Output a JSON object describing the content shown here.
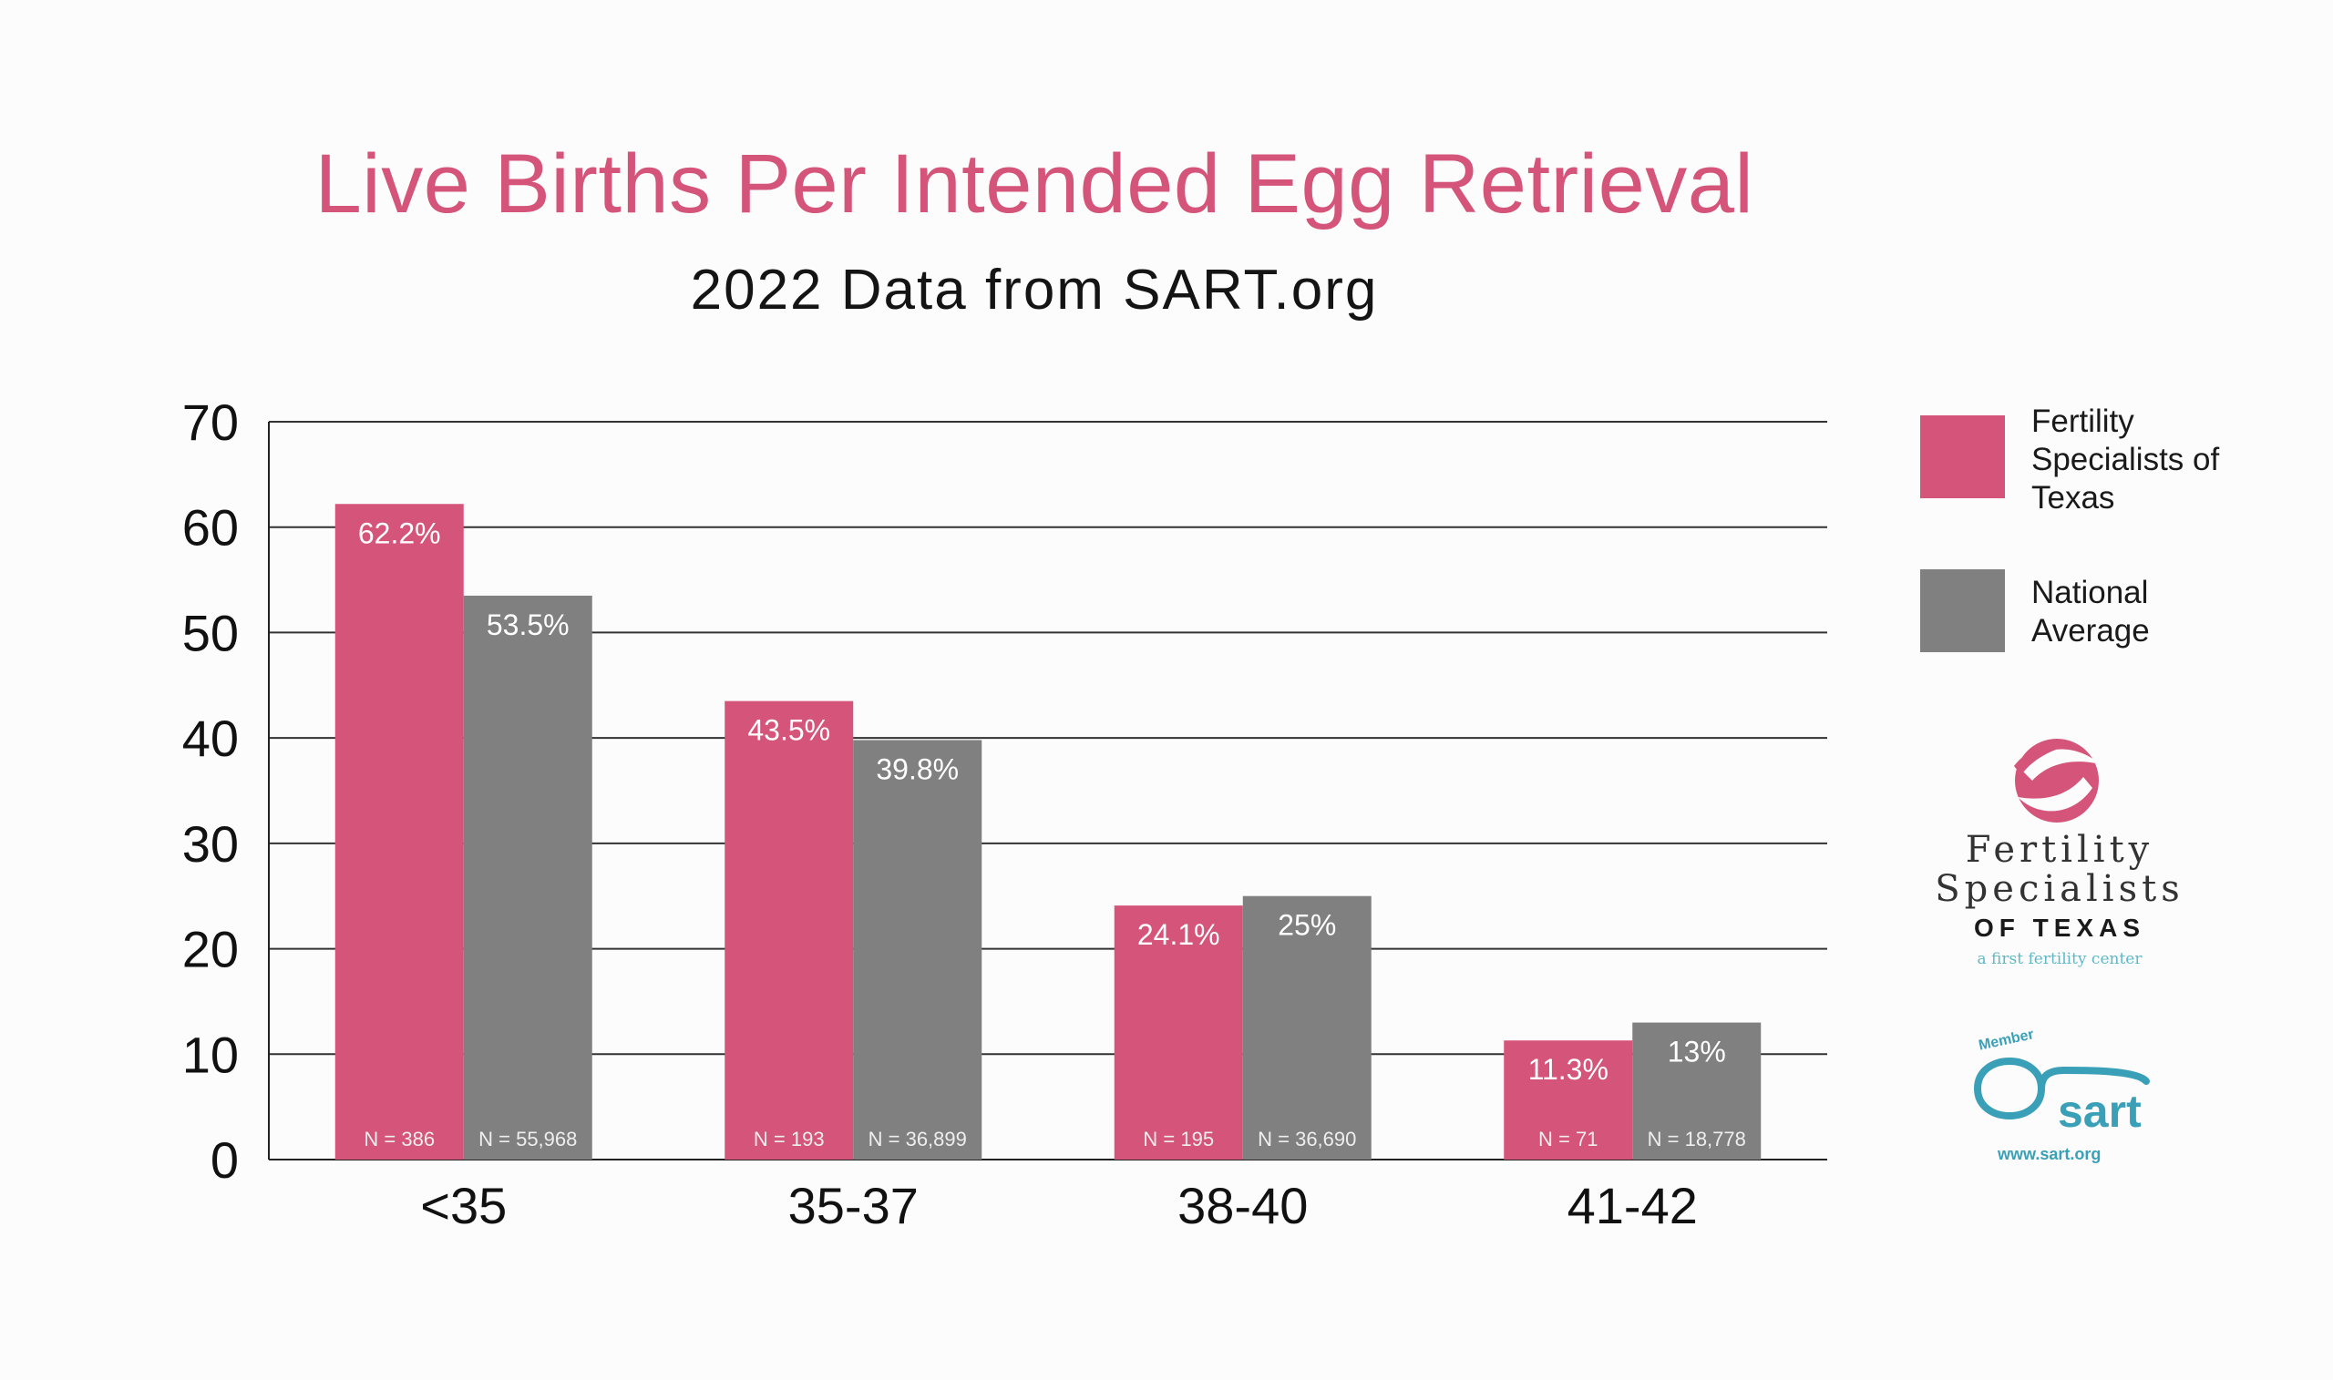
{
  "chart_data": {
    "type": "bar",
    "title": "Live Births Per Intended Egg Retrieval",
    "subtitle": "2022 Data from SART.org",
    "categories": [
      "<35",
      "35-37",
      "38-40",
      "41-42"
    ],
    "ylim": [
      0,
      70
    ],
    "yticks": [
      0,
      10,
      20,
      30,
      40,
      50,
      60,
      70
    ],
    "grid": true,
    "series": [
      {
        "name": "Fertility Specialists of Texas",
        "color": "#d4547a",
        "values": [
          62.2,
          43.5,
          24.1,
          11.3
        ],
        "labels": [
          "62.2%",
          "43.5%",
          "24.1%",
          "11.3%"
        ],
        "n_labels": [
          "N = 386",
          "N = 193",
          "N = 195",
          "N = 71"
        ]
      },
      {
        "name": "National Average",
        "color": "#808080",
        "values": [
          53.5,
          39.8,
          25,
          13
        ],
        "labels": [
          "53.5%",
          "39.8%",
          "25%",
          "13%"
        ],
        "n_labels": [
          "N = 55,968",
          "N = 36,899",
          "N = 36,690",
          "N = 18,778"
        ]
      }
    ]
  },
  "legend": {
    "fst_label": "Fertility Specialists of Texas",
    "national_label": "National Average"
  },
  "logos": {
    "fst_line1": "Fertility",
    "fst_line2": "Specialists",
    "fst_line3": "OF TEXAS",
    "fst_tagline": "a first fertility center",
    "sart_member": "Member",
    "sart_name": "sart",
    "sart_url": "www.sart.org"
  }
}
